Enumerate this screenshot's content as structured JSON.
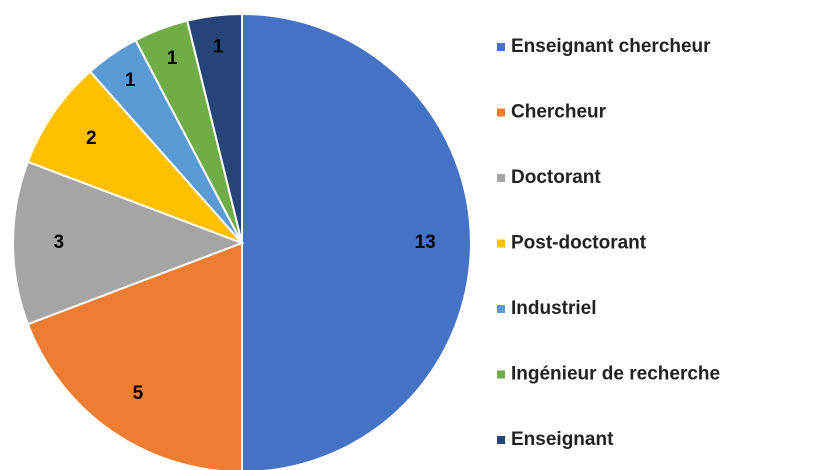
{
  "chart_data": {
    "type": "pie",
    "categories": [
      "Enseignant chercheur",
      "Chercheur",
      "Doctorant",
      "Post-doctorant",
      "Industriel",
      "Ingénieur de recherche",
      "Enseignant"
    ],
    "values": [
      13,
      5,
      3,
      2,
      1,
      1,
      1
    ],
    "colors": [
      "#4472c4",
      "#ed7d31",
      "#a5a5a5",
      "#ffc000",
      "#5b9bd5",
      "#70ad47",
      "#264478"
    ],
    "legend": "right"
  }
}
